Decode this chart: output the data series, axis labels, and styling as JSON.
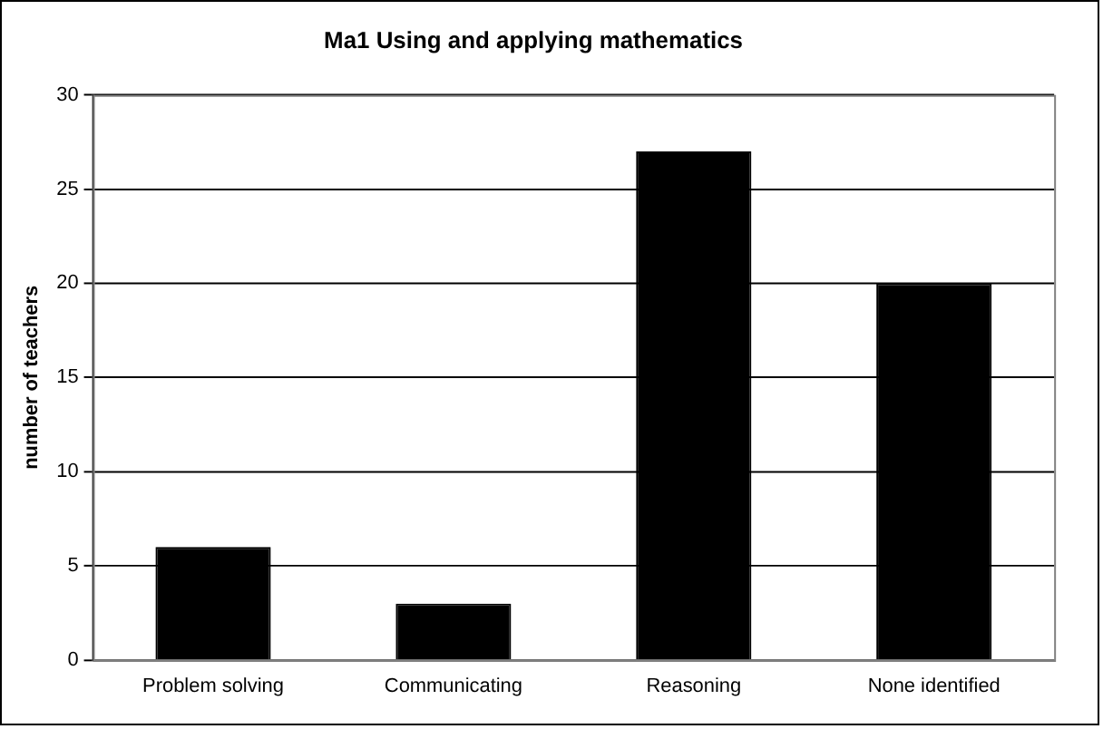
{
  "chart_data": {
    "type": "bar",
    "title": "Ma1 Using and applying mathematics",
    "ylabel": "number of teachers",
    "categories": [
      "Problem solving",
      "Communicating",
      "Reasoning",
      "None identified"
    ],
    "values": [
      6,
      3,
      27,
      20
    ],
    "color": "#000000",
    "ylim": [
      0,
      30
    ],
    "yticks": [
      0,
      5,
      10,
      15,
      20,
      25,
      30
    ],
    "grid": "y",
    "legend": false
  }
}
